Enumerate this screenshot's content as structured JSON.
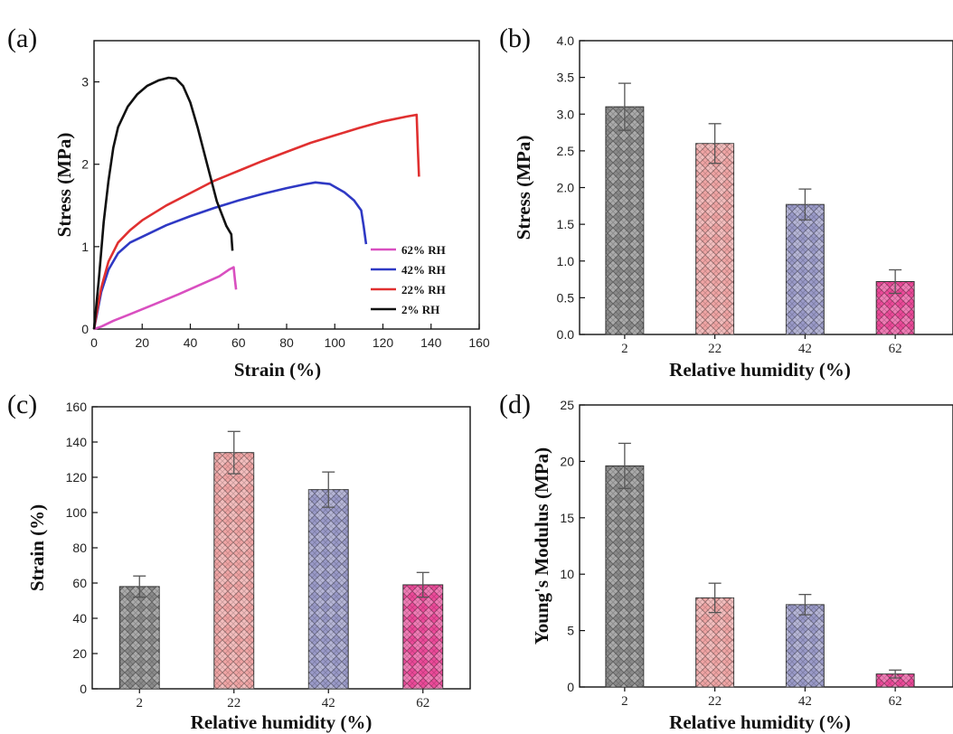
{
  "chart_data": [
    {
      "panel": "(a)",
      "type": "line",
      "xlabel": "Strain (%)",
      "ylabel": "Stress (MPa)",
      "xlim": [
        0,
        160
      ],
      "ylim": [
        0,
        3.5
      ],
      "xticks": [
        0,
        20,
        40,
        60,
        80,
        100,
        120,
        140,
        160
      ],
      "yticks": [
        0,
        1,
        2,
        3
      ],
      "legend": "bottom-right",
      "series": [
        {
          "name": "62% RH",
          "color": "#d94fc0",
          "points": [
            [
              0,
              0
            ],
            [
              3,
              0.03
            ],
            [
              8,
              0.1
            ],
            [
              15,
              0.18
            ],
            [
              25,
              0.3
            ],
            [
              35,
              0.42
            ],
            [
              45,
              0.55
            ],
            [
              52,
              0.64
            ],
            [
              56,
              0.72
            ],
            [
              58,
              0.75
            ],
            [
              58.5,
              0.6
            ],
            [
              59,
              0.48
            ]
          ]
        },
        {
          "name": "42% RH",
          "color": "#2f39c4",
          "points": [
            [
              0,
              0
            ],
            [
              1,
              0.15
            ],
            [
              3,
              0.45
            ],
            [
              6,
              0.72
            ],
            [
              10,
              0.92
            ],
            [
              15,
              1.05
            ],
            [
              20,
              1.12
            ],
            [
              30,
              1.26
            ],
            [
              40,
              1.37
            ],
            [
              50,
              1.47
            ],
            [
              60,
              1.56
            ],
            [
              70,
              1.64
            ],
            [
              80,
              1.71
            ],
            [
              88,
              1.76
            ],
            [
              92,
              1.78
            ],
            [
              98,
              1.76
            ],
            [
              104,
              1.66
            ],
            [
              108,
              1.56
            ],
            [
              111,
              1.44
            ],
            [
              112,
              1.25
            ],
            [
              113,
              1.03
            ]
          ]
        },
        {
          "name": "22% RH",
          "color": "#e03030",
          "points": [
            [
              0,
              0
            ],
            [
              1,
              0.18
            ],
            [
              3,
              0.5
            ],
            [
              6,
              0.82
            ],
            [
              10,
              1.05
            ],
            [
              15,
              1.2
            ],
            [
              20,
              1.32
            ],
            [
              30,
              1.5
            ],
            [
              40,
              1.65
            ],
            [
              50,
              1.8
            ],
            [
              60,
              1.92
            ],
            [
              70,
              2.04
            ],
            [
              80,
              2.15
            ],
            [
              90,
              2.26
            ],
            [
              100,
              2.35
            ],
            [
              110,
              2.44
            ],
            [
              120,
              2.52
            ],
            [
              130,
              2.58
            ],
            [
              134,
              2.6
            ],
            [
              134.5,
              2.2
            ],
            [
              135,
              1.85
            ]
          ]
        },
        {
          "name": "2% RH",
          "color": "#111111",
          "points": [
            [
              0,
              0
            ],
            [
              2,
              0.6
            ],
            [
              4,
              1.3
            ],
            [
              6,
              1.8
            ],
            [
              8,
              2.2
            ],
            [
              10,
              2.45
            ],
            [
              14,
              2.7
            ],
            [
              18,
              2.85
            ],
            [
              22,
              2.95
            ],
            [
              27,
              3.02
            ],
            [
              31,
              3.05
            ],
            [
              34,
              3.04
            ],
            [
              37,
              2.95
            ],
            [
              40,
              2.75
            ],
            [
              43,
              2.45
            ],
            [
              47,
              2.0
            ],
            [
              51,
              1.55
            ],
            [
              55,
              1.25
            ],
            [
              57,
              1.15
            ],
            [
              57.5,
              0.95
            ]
          ]
        }
      ]
    },
    {
      "panel": "(b)",
      "type": "bar",
      "xlabel": "Relative humidity (%)",
      "ylabel": "Stress (MPa)",
      "ylim": [
        0,
        4.0
      ],
      "yticks": [
        0,
        0.5,
        1.0,
        1.5,
        2.0,
        2.5,
        3.0,
        3.5,
        4.0
      ],
      "ytick_labels": [
        "0.0",
        "0.5",
        "1.0",
        "1.5",
        "2.0",
        "2.5",
        "3.0",
        "3.5",
        "4.0"
      ],
      "categories": [
        "2",
        "22",
        "42",
        "62"
      ],
      "values": [
        3.1,
        2.6,
        1.77,
        0.72
      ],
      "errors": [
        0.32,
        0.27,
        0.21,
        0.16
      ],
      "colors": [
        "#8a8a8a",
        "#f0a5a5",
        "#9a9ac8",
        "#ec4a9a"
      ]
    },
    {
      "panel": "(c)",
      "type": "bar",
      "xlabel": "Relative humidity (%)",
      "ylabel": "Strain (%)",
      "ylim": [
        0,
        160
      ],
      "yticks": [
        0,
        20,
        40,
        60,
        80,
        100,
        120,
        140,
        160
      ],
      "ytick_labels": [
        "0",
        "20",
        "40",
        "60",
        "80",
        "100",
        "120",
        "140",
        "160"
      ],
      "categories": [
        "2",
        "22",
        "42",
        "62"
      ],
      "values": [
        58,
        134,
        113,
        59
      ],
      "errors": [
        6,
        12,
        10,
        7
      ],
      "colors": [
        "#8a8a8a",
        "#f0a5a5",
        "#9a9ac8",
        "#ec4a9a"
      ]
    },
    {
      "panel": "(d)",
      "type": "bar",
      "xlabel": "Relative humidity (%)",
      "ylabel": "Young's Modulus (MPa)",
      "ylim": [
        0,
        25
      ],
      "yticks": [
        0,
        5,
        10,
        15,
        20,
        25
      ],
      "ytick_labels": [
        "0",
        "5",
        "10",
        "15",
        "20",
        "25"
      ],
      "categories": [
        "2",
        "22",
        "42",
        "62"
      ],
      "values": [
        19.6,
        7.9,
        7.3,
        1.15
      ],
      "errors": [
        2.0,
        1.3,
        0.9,
        0.35
      ],
      "colors": [
        "#8a8a8a",
        "#f0a5a5",
        "#9a9ac8",
        "#ec4a9a"
      ]
    }
  ]
}
